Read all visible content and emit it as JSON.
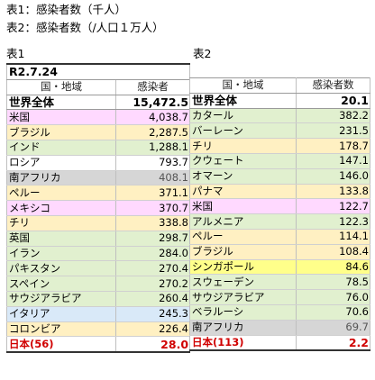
{
  "notes": {
    "line1": "表1：感染者数（千人）",
    "line2": "表2：感染者数（/人口１万人）"
  },
  "table1": {
    "caption": "表1",
    "date": "R2.7.24",
    "headers": [
      "国・地域",
      "感染者"
    ],
    "world": {
      "name": "世界全体",
      "value": "15,472.5"
    },
    "rows": [
      {
        "name": "米国",
        "value": "4,038.7",
        "color": "pink"
      },
      {
        "name": "ブラジル",
        "value": "2,287.5",
        "color": "yellow"
      },
      {
        "name": "インド",
        "value": "1,288.1",
        "color": "green"
      },
      {
        "name": "ロシア",
        "value": "793.7",
        "color": "white"
      },
      {
        "name": "南アフリカ",
        "value": "408.1",
        "color": "grey"
      },
      {
        "name": "ペルー",
        "value": "371.1",
        "color": "yellow"
      },
      {
        "name": "メキシコ",
        "value": "370.7",
        "color": "pink"
      },
      {
        "name": "チリ",
        "value": "338.8",
        "color": "yellow"
      },
      {
        "name": "英国",
        "value": "298.7",
        "color": "green"
      },
      {
        "name": "イラン",
        "value": "284.0",
        "color": "green"
      },
      {
        "name": "パキスタン",
        "value": "270.4",
        "color": "green"
      },
      {
        "name": "スペイン",
        "value": "270.2",
        "color": "green"
      },
      {
        "name": "サウジアラビア",
        "value": "260.4",
        "color": "green"
      },
      {
        "name": "イタリア",
        "value": "245.3",
        "color": "blue"
      },
      {
        "name": "コロンビア",
        "value": "226.4",
        "color": "yellow"
      }
    ],
    "japan": {
      "name": "日本(56)",
      "value": "28.0"
    }
  },
  "table2": {
    "caption": "表2",
    "headers": [
      "国・地域",
      "感染者数"
    ],
    "world": {
      "name": "世界全体",
      "value": "20.1"
    },
    "rows": [
      {
        "name": "カタール",
        "value": "382.2",
        "color": "green"
      },
      {
        "name": "バーレーン",
        "value": "231.5",
        "color": "green"
      },
      {
        "name": "チリ",
        "value": "178.7",
        "color": "yellow"
      },
      {
        "name": "クウェート",
        "value": "147.1",
        "color": "green"
      },
      {
        "name": "オマーン",
        "value": "146.0",
        "color": "green"
      },
      {
        "name": "パナマ",
        "value": "133.8",
        "color": "yellow"
      },
      {
        "name": "米国",
        "value": "122.7",
        "color": "pink"
      },
      {
        "name": "アルメニア",
        "value": "122.3",
        "color": "green"
      },
      {
        "name": "ペルー",
        "value": "114.1",
        "color": "yellow"
      },
      {
        "name": "ブラジル",
        "value": "108.4",
        "color": "yellow"
      },
      {
        "name": "シンガポール",
        "value": "84.6",
        "color": "bright"
      },
      {
        "name": "スウェーデン",
        "value": "78.5",
        "color": "green"
      },
      {
        "name": "サウジアラビア",
        "value": "76.0",
        "color": "green"
      },
      {
        "name": "ベラルーシ",
        "value": "70.6",
        "color": "green"
      },
      {
        "name": "南アフリカ",
        "value": "69.7",
        "color": "grey"
      }
    ],
    "japan": {
      "name": "日本(113)",
      "value": "2.2"
    }
  }
}
